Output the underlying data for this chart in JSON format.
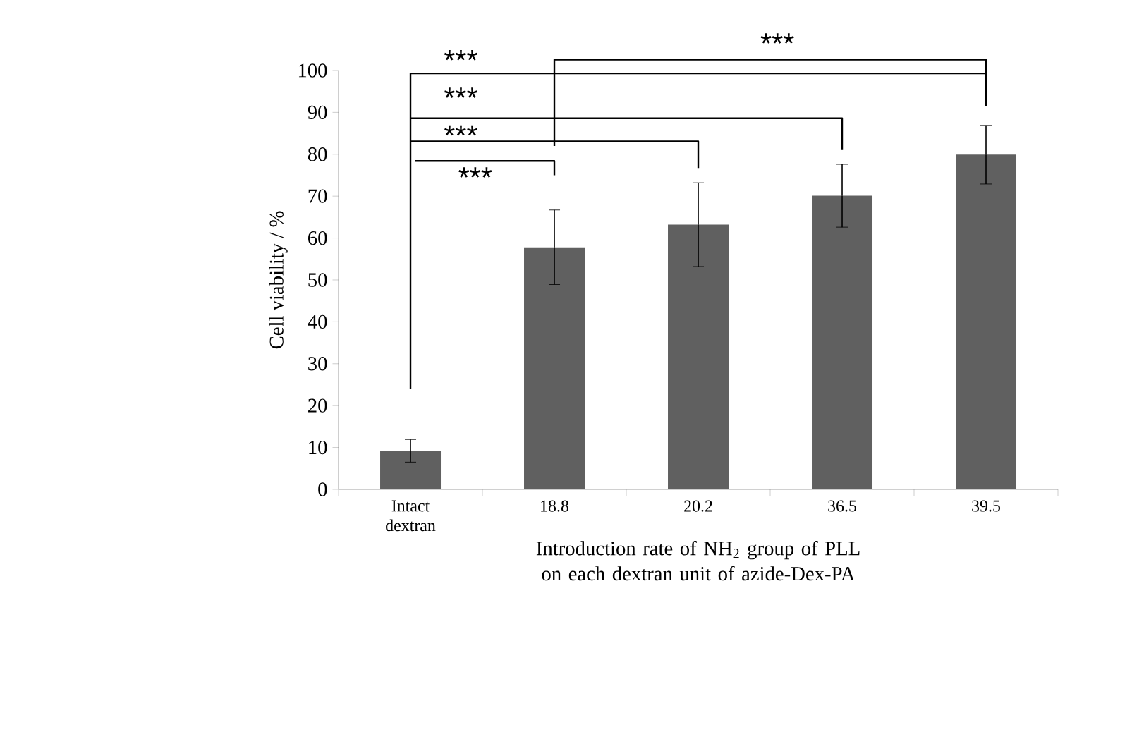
{
  "chart_data": {
    "type": "bar",
    "xlabel": "Introduction rate of NH$_{2}$ group of PLL on each dextran unit of azide-Dex-PA",
    "ylabel": "Cell viability / %",
    "categories": [
      "Intact dextran",
      "18.8",
      "20.2",
      "36.5",
      "39.5"
    ],
    "values": [
      9.2,
      57.8,
      63.2,
      70.1,
      79.9
    ],
    "errors": [
      2.7,
      8.9,
      10,
      7.5,
      7
    ],
    "color": "#606060",
    "ylim": [
      0,
      100
    ],
    "yticks": [
      0,
      10,
      20,
      30,
      40,
      50,
      60,
      70,
      80,
      90,
      100
    ],
    "annotations": [
      "***",
      "***",
      "***",
      "***",
      "***"
    ]
  }
}
